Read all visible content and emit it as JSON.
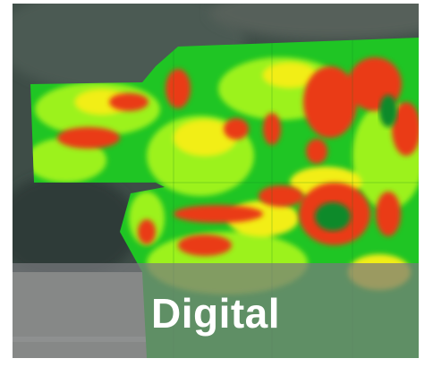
{
  "tile": {
    "caption": "Digital",
    "image_subject": "aerial-ndvi-field-map-icon",
    "colors": {
      "background_dark": "#3e4d47",
      "ground_light": "#a8ad9f",
      "field_green": "#1fc524",
      "field_lime": "#9cf21a",
      "field_yellow": "#f2ee18",
      "field_red": "#ea3b12",
      "caption_overlay": "#787a7e",
      "caption_text": "#ffffff"
    }
  }
}
